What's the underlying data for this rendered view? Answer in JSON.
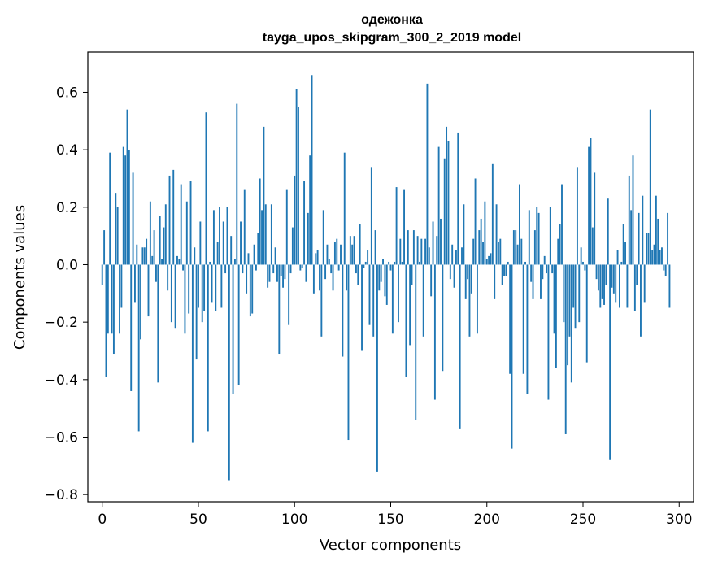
{
  "chart_data": {
    "type": "bar",
    "title": "одежонка",
    "subtitle": "tayga_upos_skipgram_300_2_2019 model",
    "xlabel": "Vector components",
    "ylabel": "Components values",
    "xlim": [
      -7.5,
      307.5
    ],
    "ylim": [
      -0.825,
      0.74
    ],
    "xticks": [
      0,
      50,
      100,
      150,
      200,
      250,
      300
    ],
    "xtick_labels": [
      "0",
      "50",
      "100",
      "150",
      "200",
      "250",
      "300"
    ],
    "yticks": [
      -0.8,
      -0.6,
      -0.4,
      -0.2,
      0.0,
      0.2,
      0.4,
      0.6
    ],
    "ytick_labels": [
      "−0.8",
      "−0.6",
      "−0.4",
      "−0.2",
      "0.0",
      "0.2",
      "0.4",
      "0.6"
    ],
    "color": "#1f77b4",
    "values": [
      -0.07,
      0.12,
      -0.39,
      -0.24,
      0.39,
      -0.24,
      -0.31,
      0.25,
      0.2,
      -0.24,
      -0.15,
      0.41,
      0.38,
      0.54,
      0.4,
      -0.44,
      0.32,
      -0.13,
      0.07,
      -0.58,
      -0.26,
      0.06,
      0.06,
      0.09,
      -0.18,
      0.22,
      0.03,
      0.12,
      -0.06,
      -0.41,
      0.17,
      0.02,
      0.13,
      0.21,
      -0.09,
      0.31,
      -0.2,
      0.33,
      -0.22,
      0.03,
      0.02,
      0.28,
      -0.02,
      -0.24,
      0.22,
      -0.17,
      0.29,
      -0.62,
      0.06,
      -0.33,
      -0.15,
      0.15,
      -0.2,
      -0.16,
      0.53,
      -0.58,
      0.01,
      -0.13,
      0.19,
      -0.16,
      0.08,
      0.2,
      -0.15,
      0.15,
      -0.03,
      0.2,
      -0.75,
      0.1,
      -0.45,
      0.02,
      0.56,
      -0.42,
      0.15,
      -0.03,
      0.26,
      -0.1,
      0.04,
      -0.18,
      -0.17,
      0.07,
      -0.02,
      0.11,
      0.3,
      0.19,
      0.48,
      0.21,
      -0.08,
      -0.06,
      0.21,
      -0.03,
      0.06,
      -0.06,
      -0.31,
      -0.04,
      -0.08,
      -0.05,
      0.26,
      -0.21,
      -0.03,
      0.13,
      0.31,
      0.61,
      0.55,
      -0.02,
      -0.01,
      0.29,
      -0.06,
      0.18,
      0.38,
      0.66,
      -0.1,
      0.04,
      0.05,
      -0.09,
      -0.25,
      0.19,
      -0.05,
      0.07,
      0.02,
      -0.03,
      -0.09,
      0.08,
      0.09,
      -0.02,
      0.07,
      -0.32,
      0.39,
      -0.09,
      -0.61,
      0.1,
      0.07,
      0.1,
      -0.03,
      -0.07,
      0.14,
      -0.3,
      -0.01,
      0.01,
      0.05,
      -0.21,
      0.34,
      -0.25,
      0.12,
      -0.72,
      -0.09,
      -0.06,
      0.02,
      -0.11,
      -0.14,
      0.01,
      -0.02,
      -0.24,
      0.01,
      0.27,
      -0.2,
      0.09,
      0.01,
      0.26,
      -0.39,
      0.12,
      -0.28,
      -0.07,
      0.12,
      -0.54,
      0.1,
      0.01,
      0.09,
      -0.25,
      0.09,
      0.63,
      0.06,
      -0.11,
      0.15,
      -0.47,
      0.1,
      0.41,
      0.16,
      -0.37,
      0.37,
      0.48,
      0.43,
      -0.05,
      0.07,
      -0.08,
      0.05,
      0.46,
      -0.57,
      0.06,
      0.21,
      -0.12,
      -0.05,
      -0.25,
      -0.1,
      0.09,
      0.3,
      -0.24,
      0.12,
      0.16,
      0.08,
      0.22,
      0.02,
      0.03,
      0.04,
      0.35,
      -0.12,
      0.21,
      0.08,
      0.09,
      -0.07,
      -0.04,
      -0.04,
      0.01,
      -0.38,
      -0.64,
      0.12,
      0.12,
      0.07,
      0.28,
      0.09,
      -0.38,
      0.01,
      -0.45,
      0.19,
      -0.06,
      -0.12,
      0.12,
      0.2,
      0.18,
      -0.12,
      -0.05,
      0.03,
      -0.03,
      -0.47,
      0.2,
      -0.03,
      -0.24,
      -0.36,
      0.09,
      0.14,
      0.28,
      -0.2,
      -0.59,
      -0.35,
      -0.25,
      -0.41,
      -0.15,
      -0.22,
      0.34,
      -0.2,
      0.06,
      0.01,
      -0.02,
      -0.34,
      0.41,
      0.44,
      0.13,
      0.32,
      -0.05,
      -0.09,
      -0.15,
      -0.12,
      -0.14,
      -0.07,
      0.23,
      -0.68,
      -0.08,
      -0.1,
      -0.13,
      0.05,
      -0.15,
      0.01,
      0.14,
      0.08,
      -0.15,
      0.31,
      0.19,
      0.38,
      -0.16,
      -0.07,
      0.18,
      -0.25,
      0.24,
      -0.13,
      0.11,
      0.11,
      0.54,
      0.05,
      0.07,
      0.24,
      0.16,
      0.05,
      0.06,
      -0.02,
      -0.04,
      0.18,
      -0.15
    ]
  }
}
